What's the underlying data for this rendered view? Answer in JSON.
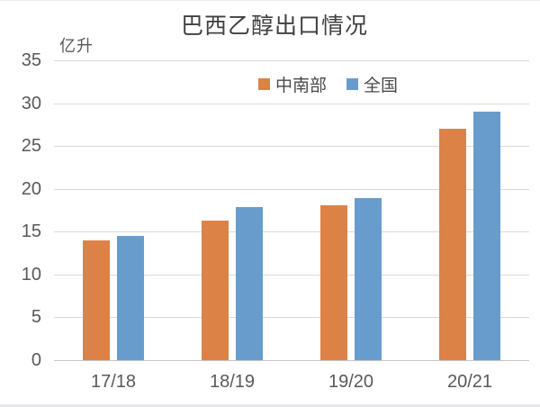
{
  "chart_data": {
    "type": "bar",
    "title": "巴西乙醇出口情况",
    "unit_label": "亿升",
    "categories": [
      "17/18",
      "18/19",
      "19/20",
      "20/21"
    ],
    "series": [
      {
        "name": "中南部",
        "key": "central-south",
        "color": "#DD8246",
        "values": [
          14.0,
          16.3,
          18.1,
          27.0
        ]
      },
      {
        "name": "全国",
        "key": "national",
        "color": "#689CCD",
        "values": [
          14.5,
          17.9,
          18.9,
          29.0
        ]
      }
    ],
    "ylim": [
      0,
      35
    ],
    "yticks": [
      0,
      5,
      10,
      15,
      20,
      25,
      30,
      35
    ],
    "xlabel": "",
    "ylabel": "",
    "grid": true,
    "legend_position": "top"
  },
  "colors": {
    "background": "#ffffff",
    "gridline": "#d9d9d9",
    "axis_line": "#c7c7c7",
    "tick_text": "#595959",
    "title_text": "#404040"
  }
}
